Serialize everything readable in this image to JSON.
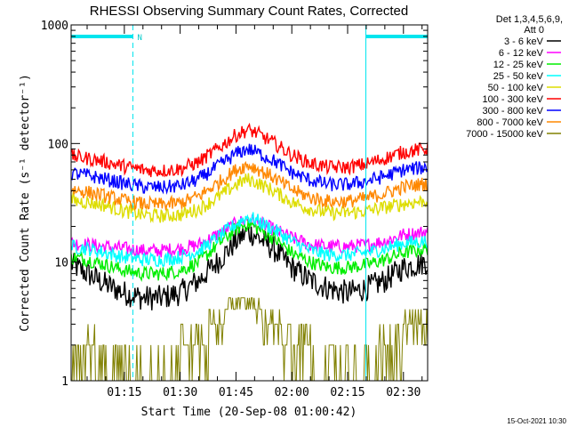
{
  "chart_data": {
    "type": "line",
    "title": "RHESSI Observing Summary Count Rates, Corrected",
    "xlabel": "Start Time (20-Sep-08 01:00:42)",
    "ylabel": "Corrected Count Rate (s⁻¹ detector⁻¹)",
    "yscale": "log",
    "ylim": [
      1,
      1000
    ],
    "xlim": [
      0.7,
      96.5
    ],
    "x_unit": "minutes after 01:00 UT",
    "xticks": [
      {
        "x": 15,
        "label": "01:15"
      },
      {
        "x": 30,
        "label": "01:30"
      },
      {
        "x": 45,
        "label": "01:45"
      },
      {
        "x": 60,
        "label": "02:00"
      },
      {
        "x": 75,
        "label": "02:15"
      },
      {
        "x": 90,
        "label": "02:30"
      }
    ],
    "yticks": [
      {
        "y": 1,
        "label": "1"
      },
      {
        "y": 10,
        "label": "10"
      },
      {
        "y": 100,
        "label": "100"
      },
      {
        "y": 1000,
        "label": "1000"
      }
    ],
    "legend_header": [
      "Det 1,3,4,5,6,9,",
      "Att 0"
    ],
    "legend_placement": "right",
    "night_marker_label": "N",
    "footer_date": "15-Oct-2021 10:30",
    "night_periods": [
      [
        0.7,
        17.3
      ],
      [
        79.9,
        96.5
      ]
    ],
    "saa_markers": [
      0.7,
      17.3,
      79.9,
      96.5
    ],
    "x": [
      1,
      5,
      10,
      15,
      20,
      25,
      30,
      35,
      40,
      45,
      48,
      50,
      55,
      60,
      65,
      70,
      75,
      80,
      85,
      90,
      96
    ],
    "series": [
      {
        "name": "3 - 6 keV",
        "color": "#000000",
        "values": [
          9.5,
          8,
          6.5,
          5.5,
          5,
          5,
          5.5,
          7,
          10,
          15,
          18,
          17,
          13,
          9,
          7,
          6,
          5.5,
          6,
          7,
          9,
          10
        ]
      },
      {
        "name": "6 - 12 keV",
        "color": "#ff00ff",
        "values": [
          14.5,
          14,
          13.5,
          13,
          12.5,
          12.5,
          13,
          14,
          17,
          21,
          23,
          22,
          19,
          16,
          14,
          13.5,
          13.5,
          14,
          15,
          17,
          18
        ]
      },
      {
        "name": "12 - 25 keV",
        "color": "#00ee00",
        "values": [
          11,
          10.5,
          9.5,
          8.5,
          8,
          8,
          8.5,
          10,
          14,
          19,
          21,
          20,
          16,
          12,
          10,
          9,
          9,
          9.5,
          10.5,
          12,
          13
        ]
      },
      {
        "name": "25 - 50 keV",
        "color": "#00ffff",
        "values": [
          13.5,
          13,
          12,
          11,
          10.5,
          10.5,
          11,
          12.5,
          16,
          21,
          24,
          23,
          19,
          15,
          12.5,
          11.5,
          11.5,
          12,
          13,
          14.5,
          15
        ]
      },
      {
        "name": "50 - 100 keV",
        "color": "#dddd00",
        "values": [
          33,
          32,
          30,
          27,
          25,
          24.5,
          25,
          28,
          35,
          45,
          50,
          48,
          40,
          32,
          28,
          26,
          26,
          27,
          29,
          31,
          33
        ]
      },
      {
        "name": "100 - 300 keV",
        "color": "#ff0000",
        "values": [
          78,
          75,
          70,
          64,
          60,
          59,
          61,
          70,
          90,
          118,
          130,
          125,
          102,
          80,
          68,
          63,
          63,
          67,
          75,
          85,
          90
        ]
      },
      {
        "name": "300 - 800 keV",
        "color": "#0000ff",
        "values": [
          56,
          54,
          50,
          46,
          43,
          42.5,
          44,
          50,
          64,
          82,
          90,
          86,
          72,
          57,
          49,
          45,
          45,
          48,
          53,
          60,
          63
        ]
      },
      {
        "name": "800 - 7000 keV",
        "color": "#ff8800",
        "values": [
          41,
          39,
          36,
          33,
          31,
          30.5,
          31.5,
          36,
          46,
          60,
          66,
          63,
          52,
          41,
          35,
          32.5,
          32.5,
          34.5,
          38,
          43,
          46
        ]
      },
      {
        "name": "7000 - 15000 keV",
        "color": "#808000",
        "values": [
          2,
          2,
          1,
          1,
          1,
          1,
          1.5,
          2,
          3,
          4.5,
          5,
          4,
          3,
          2,
          1.5,
          1,
          1,
          1,
          2,
          2.5,
          2.5
        ]
      }
    ]
  }
}
